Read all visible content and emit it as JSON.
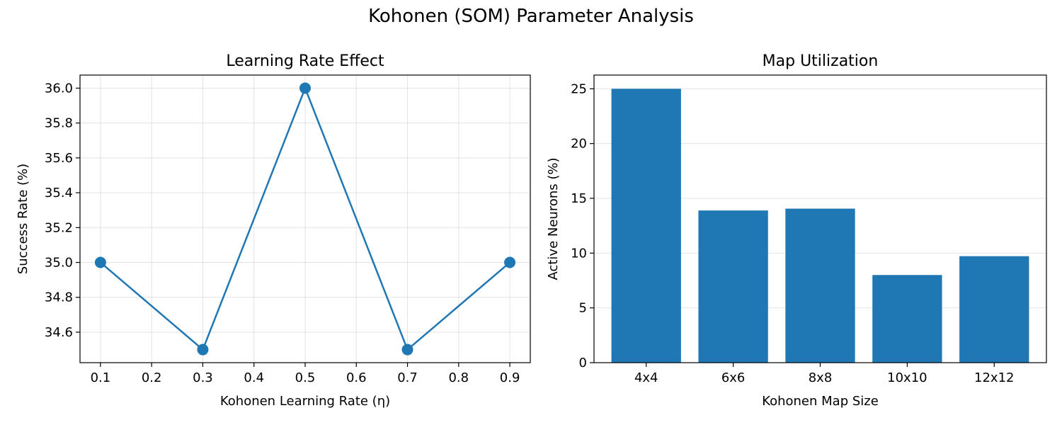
{
  "figure_title": "Kohonen (SOM) Parameter Analysis",
  "chart_data": [
    {
      "type": "line",
      "title": "Learning Rate Effect",
      "xlabel": "Kohonen Learning Rate (η)",
      "ylabel": "Success Rate (%)",
      "x": [
        0.1,
        0.3,
        0.5,
        0.7,
        0.9
      ],
      "series": [
        {
          "values": [
            35.0,
            34.5,
            36.0,
            34.5,
            35.0
          ]
        }
      ],
      "xlim": [
        0.06,
        0.94
      ],
      "ylim": [
        34.425,
        36.075
      ],
      "xticks": [
        "0.1",
        "0.2",
        "0.3",
        "0.4",
        "0.5",
        "0.6",
        "0.7",
        "0.8",
        "0.9"
      ],
      "yticks": [
        "34.6",
        "34.8",
        "35.0",
        "35.2",
        "35.4",
        "35.6",
        "35.8",
        "36.0"
      ],
      "grid": true,
      "color": "#1f77b4"
    },
    {
      "type": "bar",
      "title": "Map Utilization",
      "xlabel": "Kohonen Map Size",
      "ylabel": "Active Neurons (%)",
      "categories": [
        "4x4",
        "6x6",
        "8x8",
        "10x10",
        "12x12"
      ],
      "values": [
        25.0,
        13.89,
        14.06,
        8.0,
        9.72
      ],
      "ylim": [
        0,
        26.25
      ],
      "yticks": [
        "0",
        "5",
        "10",
        "15",
        "20",
        "25"
      ],
      "grid": true,
      "grid_axis": "y",
      "color": "#1f77b4"
    }
  ]
}
